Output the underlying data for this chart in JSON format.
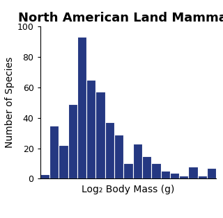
{
  "title": "North American Land Mammals",
  "xlabel": "Log₂ Body Mass (g)",
  "ylabel": "Number of Species",
  "bar_color": "#253882",
  "bar_edgecolor": "#ffffff",
  "values": [
    3,
    35,
    22,
    49,
    93,
    65,
    57,
    37,
    29,
    10,
    23,
    15,
    10,
    5,
    4,
    2,
    8,
    2,
    7
  ],
  "ylim": [
    0,
    100
  ],
  "yticks": [
    0,
    20,
    40,
    60,
    80,
    100
  ],
  "background_color": "#ffffff",
  "title_fontsize": 13,
  "label_fontsize": 10,
  "tick_fontsize": 9
}
